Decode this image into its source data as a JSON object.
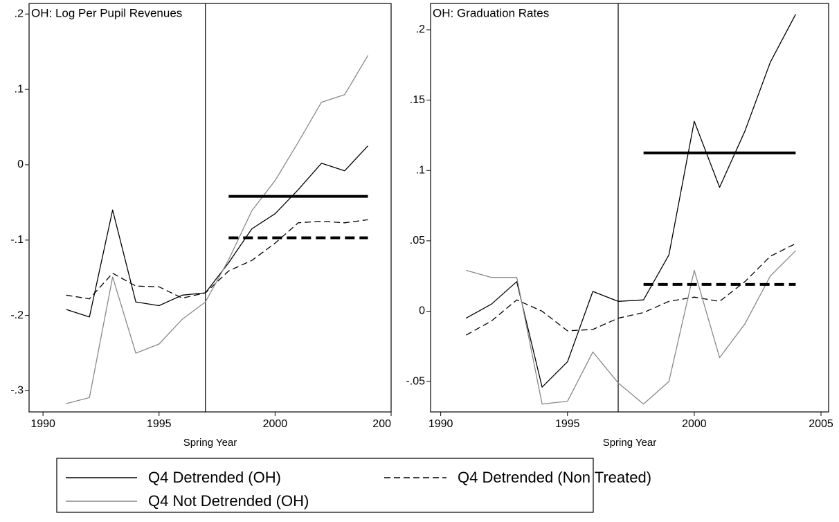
{
  "chart_data": [
    {
      "type": "line",
      "title": "OH: Log Per Pupil Revenues",
      "xlabel": "Spring Year",
      "x": [
        1991,
        1992,
        1993,
        1994,
        1995,
        1996,
        1997,
        1998,
        1999,
        2000,
        2001,
        2002,
        2003,
        2004
      ],
      "xlim": [
        1989.4,
        2005.0
      ],
      "xticks": [
        1990,
        1995,
        2000,
        {
          "value": 2005,
          "label": "200"
        }
      ],
      "ylim": [
        -0.328,
        0.214
      ],
      "yticks": [
        {
          "value": -0.3,
          "label": "-.3"
        },
        {
          "value": -0.2,
          "label": "-.2"
        },
        {
          "value": -0.1,
          "label": "-.1"
        },
        0,
        {
          "value": 0.1,
          "label": ".1"
        },
        {
          "value": 0.2,
          "label": ".2"
        }
      ],
      "vline": 1997,
      "series": [
        {
          "name": "Q4 Detrended (OH)",
          "color": "#000000",
          "dash": false,
          "values": [
            -0.192,
            -0.202,
            -0.06,
            -0.182,
            -0.187,
            -0.173,
            -0.17,
            -0.13,
            -0.085,
            -0.065,
            -0.033,
            0.002,
            -0.008,
            0.025
          ]
        },
        {
          "name": "Q4 Detrended (Non Treated)",
          "color": "#000000",
          "dash": true,
          "values": [
            -0.173,
            -0.178,
            -0.144,
            -0.161,
            -0.162,
            -0.177,
            -0.17,
            -0.141,
            -0.127,
            -0.104,
            -0.077,
            -0.075,
            -0.077,
            -0.073
          ]
        },
        {
          "name": "Q4 Not Detrended (OH)",
          "color": "#888888",
          "dash": false,
          "values": [
            -0.317,
            -0.309,
            -0.149,
            -0.25,
            -0.238,
            -0.205,
            -0.182,
            -0.126,
            -0.061,
            -0.021,
            0.03,
            0.083,
            0.093,
            0.145
          ]
        }
      ],
      "mean_lines": [
        {
          "value": -0.042,
          "x": [
            1998,
            2004
          ],
          "dash": false
        },
        {
          "value": -0.097,
          "x": [
            1998,
            2004
          ],
          "dash": true
        }
      ]
    },
    {
      "type": "line",
      "title": "OH: Graduation Rates",
      "xlabel": "Spring Year",
      "x": [
        1991,
        1992,
        1993,
        1994,
        1995,
        1996,
        1997,
        1998,
        1999,
        2000,
        2001,
        2002,
        2003,
        2004
      ],
      "xlim": [
        1989.6,
        2005.3
      ],
      "xticks": [
        1990,
        1995,
        2000,
        2005
      ],
      "ylim": [
        -0.0716,
        0.2187
      ],
      "yticks": [
        {
          "value": -0.05,
          "label": "-.05"
        },
        0,
        {
          "value": 0.05,
          "label": ".05"
        },
        {
          "value": 0.1,
          "label": ".1"
        },
        {
          "value": 0.15,
          "label": ".15"
        },
        {
          "value": 0.2,
          "label": ".2"
        }
      ],
      "vline": 1997,
      "series": [
        {
          "color": "#000000",
          "dash": false,
          "values": [
            -0.005,
            0.005,
            0.021,
            -0.054,
            -0.036,
            0.014,
            0.007,
            0.008,
            0.04,
            0.135,
            0.088,
            0.128,
            0.177,
            0.211
          ]
        },
        {
          "color": "#000000",
          "dash": true,
          "values": [
            -0.017,
            -0.007,
            0.008,
            0.0,
            -0.014,
            -0.013,
            -0.005,
            -0.001,
            0.007,
            0.01,
            0.007,
            0.021,
            0.039,
            0.048
          ]
        },
        {
          "color": "#888888",
          "dash": false,
          "values": [
            0.029,
            0.024,
            0.024,
            -0.066,
            -0.064,
            -0.029,
            -0.051,
            -0.066,
            -0.05,
            0.029,
            -0.033,
            -0.009,
            0.025,
            0.043
          ]
        }
      ],
      "mean_lines": [
        {
          "value": 0.1125,
          "x": [
            1998,
            2004
          ],
          "dash": false
        },
        {
          "value": 0.019,
          "x": [
            1998,
            2004
          ],
          "dash": true
        }
      ]
    }
  ]
}
